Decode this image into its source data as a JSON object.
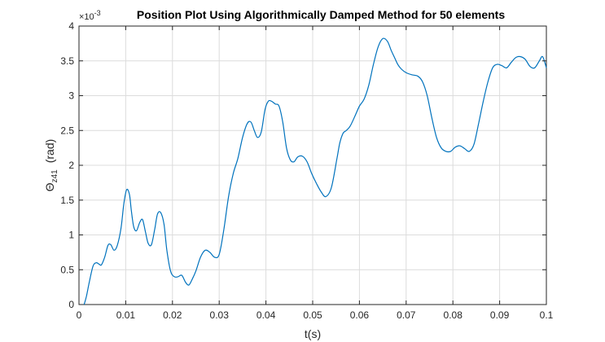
{
  "chart_data": {
    "type": "line",
    "title": "Position Plot Using Algorithmically Damped Method for 50 elements",
    "xlabel": "t(s)",
    "ylabel_main": "Θ",
    "ylabel_sub": "z41",
    "ylabel_unit": "(rad)",
    "y_multiplier_base": "×10",
    "y_multiplier_exp": "-3",
    "xlim": [
      0,
      0.1
    ],
    "ylim": [
      0,
      4
    ],
    "x_ticks": [
      0,
      0.01,
      0.02,
      0.03,
      0.04,
      0.05,
      0.06,
      0.07,
      0.08,
      0.09,
      0.1
    ],
    "x_tick_labels": [
      "0",
      "0.01",
      "0.02",
      "0.03",
      "0.04",
      "0.05",
      "0.06",
      "0.07",
      "0.08",
      "0.09",
      "0.1"
    ],
    "y_ticks": [
      0,
      0.5,
      1,
      1.5,
      2,
      2.5,
      3,
      3.5,
      4
    ],
    "y_tick_labels": [
      "0",
      "0.5",
      "1",
      "1.5",
      "2",
      "2.5",
      "3",
      "3.5",
      "4"
    ],
    "grid": true,
    "line_color": "#0072BD",
    "series": [
      {
        "x": [
          0.0011,
          0.0016,
          0.0022,
          0.003,
          0.0037,
          0.0043,
          0.0048,
          0.0055,
          0.0062,
          0.0068,
          0.0075,
          0.0082,
          0.009,
          0.0096,
          0.0102,
          0.0108,
          0.0112,
          0.0117,
          0.0123,
          0.013,
          0.0136,
          0.0142,
          0.0148,
          0.0155,
          0.0162,
          0.0168,
          0.0175,
          0.0182,
          0.0188,
          0.0196,
          0.0204,
          0.0212,
          0.022,
          0.0228,
          0.0235,
          0.0242,
          0.025,
          0.026,
          0.027,
          0.028,
          0.029,
          0.03,
          0.031,
          0.032,
          0.033,
          0.034,
          0.035,
          0.036,
          0.0368,
          0.0375,
          0.0382,
          0.039,
          0.0398,
          0.0405,
          0.0412,
          0.042,
          0.0428,
          0.0436,
          0.0444,
          0.0452,
          0.046,
          0.0468,
          0.0478,
          0.0488,
          0.0498,
          0.0508,
          0.0518,
          0.0528,
          0.054,
          0.0552,
          0.0558,
          0.0565,
          0.0572,
          0.058,
          0.059,
          0.06,
          0.061,
          0.062,
          0.063,
          0.064,
          0.065,
          0.066,
          0.0668,
          0.0675,
          0.0682,
          0.069,
          0.07,
          0.0712,
          0.0725,
          0.0735,
          0.0745,
          0.0755,
          0.0765,
          0.0775,
          0.0785,
          0.0795,
          0.0805,
          0.0815,
          0.0825,
          0.0835,
          0.0845,
          0.0855,
          0.0865,
          0.0875,
          0.0885,
          0.0895,
          0.0905,
          0.0915,
          0.0925,
          0.0935,
          0.0945,
          0.0955,
          0.0965,
          0.0975,
          0.0985,
          0.0992,
          0.1
        ],
        "y": [
          0.0,
          0.12,
          0.32,
          0.55,
          0.6,
          0.58,
          0.57,
          0.68,
          0.85,
          0.86,
          0.78,
          0.85,
          1.1,
          1.45,
          1.65,
          1.58,
          1.35,
          1.12,
          1.06,
          1.18,
          1.22,
          1.05,
          0.88,
          0.86,
          1.08,
          1.3,
          1.32,
          1.15,
          0.78,
          0.48,
          0.4,
          0.4,
          0.42,
          0.32,
          0.28,
          0.36,
          0.48,
          0.68,
          0.78,
          0.75,
          0.68,
          0.72,
          1.08,
          1.55,
          1.88,
          2.1,
          2.4,
          2.6,
          2.62,
          2.5,
          2.4,
          2.48,
          2.8,
          2.92,
          2.92,
          2.88,
          2.85,
          2.62,
          2.25,
          2.08,
          2.05,
          2.12,
          2.13,
          2.05,
          1.88,
          1.74,
          1.62,
          1.55,
          1.68,
          2.1,
          2.32,
          2.46,
          2.5,
          2.56,
          2.7,
          2.85,
          2.95,
          3.15,
          3.45,
          3.7,
          3.82,
          3.78,
          3.65,
          3.55,
          3.45,
          3.38,
          3.33,
          3.3,
          3.28,
          3.2,
          3.0,
          2.68,
          2.4,
          2.25,
          2.2,
          2.2,
          2.26,
          2.28,
          2.24,
          2.2,
          2.3,
          2.6,
          2.92,
          3.2,
          3.4,
          3.45,
          3.43,
          3.4,
          3.48,
          3.55,
          3.56,
          3.52,
          3.42,
          3.4,
          3.5,
          3.56,
          3.4
        ]
      }
    ]
  }
}
